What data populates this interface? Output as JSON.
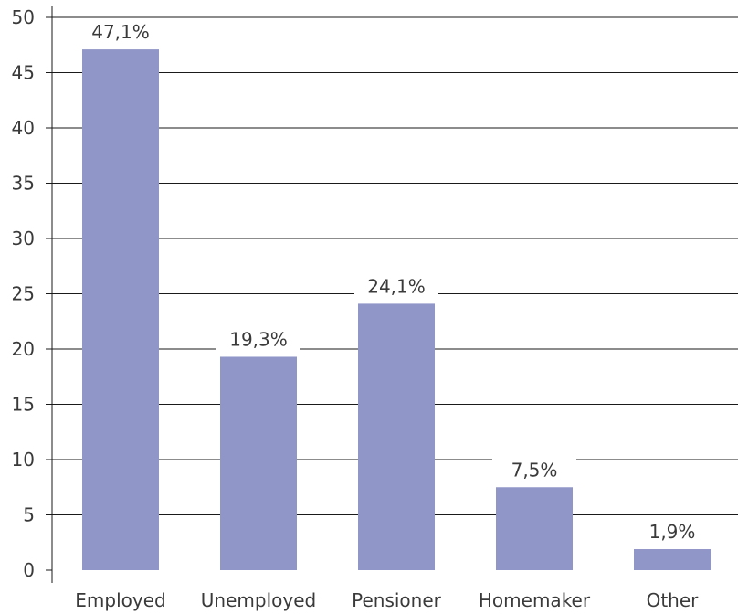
{
  "chart_data": {
    "type": "bar",
    "categories": [
      "Employed",
      "Unemployed",
      "Pensioner",
      "Homemaker",
      "Other"
    ],
    "values": [
      47.1,
      19.3,
      24.1,
      7.5,
      1.9
    ],
    "data_labels": [
      "47,1%",
      "19,3%",
      "24,1%",
      "7,5%",
      "1,9%"
    ],
    "ylim": [
      0,
      50
    ],
    "yticks": [
      0,
      5,
      10,
      15,
      20,
      25,
      30,
      35,
      40,
      45,
      50
    ],
    "title": "",
    "xlabel": "",
    "ylabel": "",
    "grid": true,
    "legend": "none",
    "colors": {
      "bar": "#9196c8",
      "grid": "#1a1a1a",
      "axis": "#1a1a1a",
      "text": "#3a3a3a"
    }
  }
}
